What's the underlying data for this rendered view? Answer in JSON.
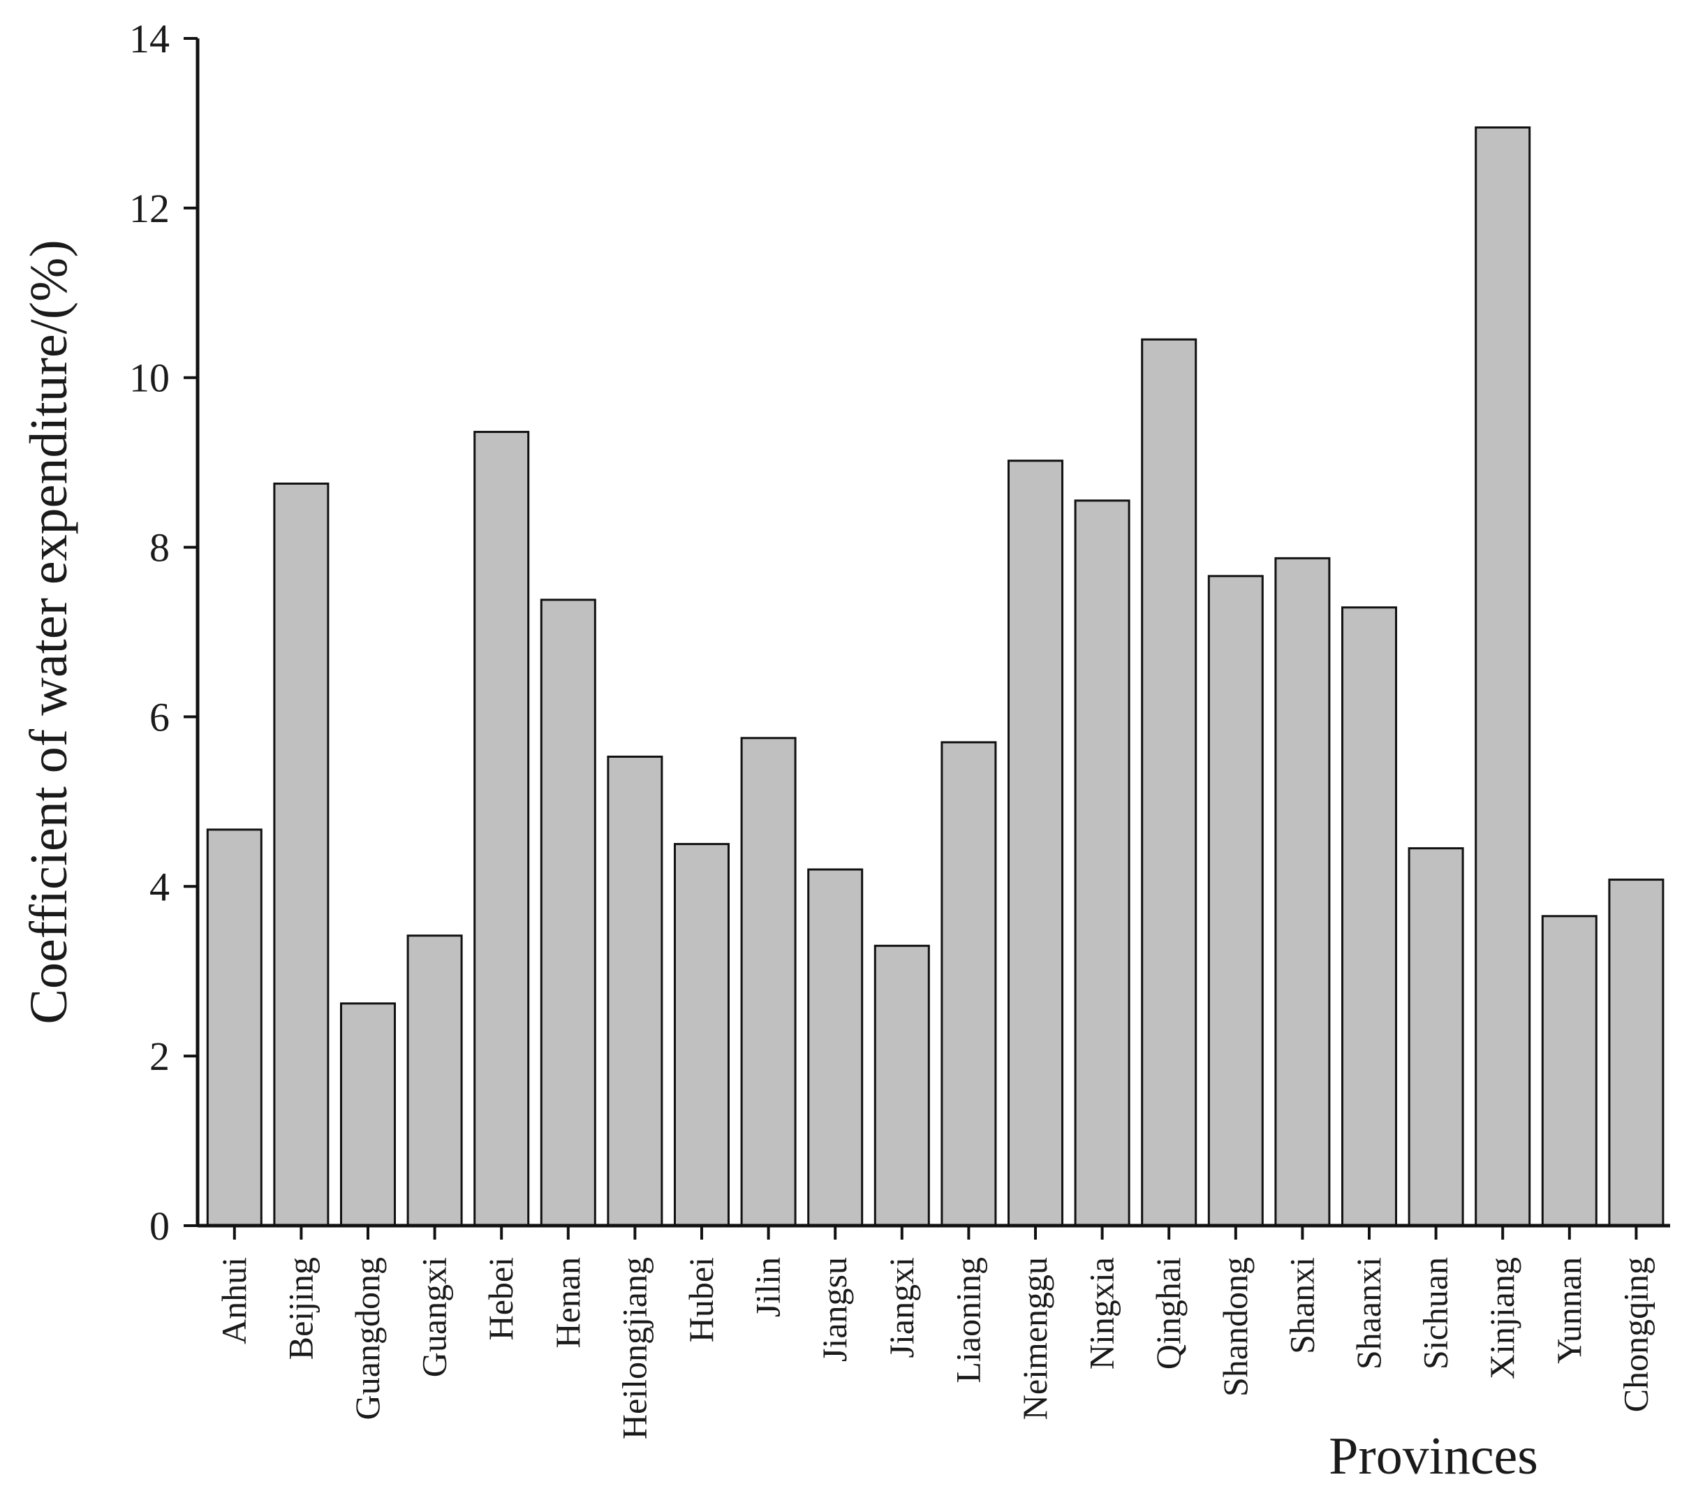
{
  "chart_data": {
    "type": "bar",
    "title": "",
    "xlabel": "Provinces",
    "ylabel": "Coefficient of water expenditure/(%)",
    "ylim": [
      0,
      14
    ],
    "yticks": [
      0,
      2,
      4,
      6,
      8,
      10,
      12,
      14
    ],
    "grid": false,
    "bar_color": "#c0c0c0",
    "bar_edge_color": "#111111",
    "categories": [
      "Anhui",
      "Beijing",
      "Guangdong",
      "Guangxi",
      "Hebei",
      "Henan",
      "Heilongjiang",
      "Hubei",
      "Jilin",
      "Jiangsu",
      "Jiangxi",
      "Liaoning",
      "Neimenggu",
      "Ningxia",
      "Qinghai",
      "Shandong",
      "Shanxi",
      "Shaanxi",
      "Sichuan",
      "Xinjiang",
      "Yunnan",
      "Chongqing"
    ],
    "values": [
      4.67,
      8.75,
      2.62,
      3.42,
      9.36,
      7.38,
      5.53,
      4.5,
      5.75,
      4.2,
      3.3,
      5.7,
      9.02,
      8.55,
      10.45,
      7.66,
      7.87,
      7.29,
      4.45,
      12.95,
      3.65,
      4.08
    ]
  }
}
